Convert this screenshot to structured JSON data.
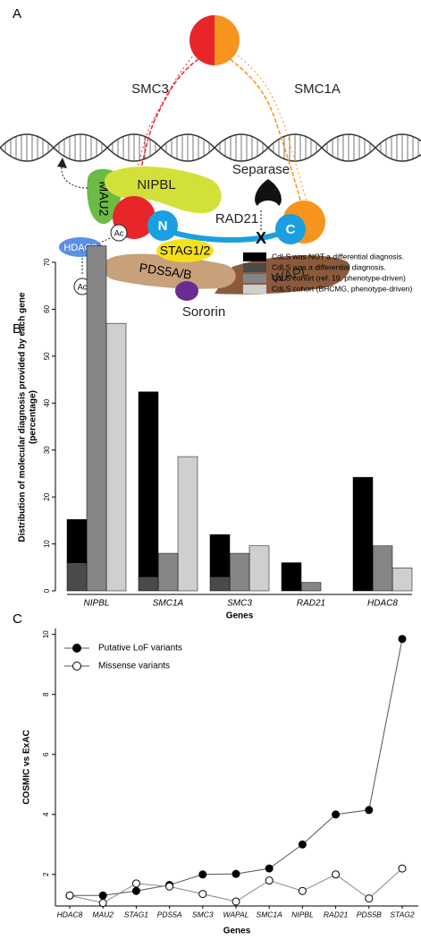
{
  "panel_labels": [
    "A",
    "B",
    "C"
  ],
  "diagram": {
    "smc3": "SMC3",
    "smc1a": "SMC1A",
    "separase": "Separase",
    "mau2": "MAU2",
    "nipbl": "NIPBL",
    "n_term": "N",
    "c_term": "C",
    "rad21": "RAD21",
    "cleave": "X",
    "ac1": "Ac",
    "ac2": "Ac",
    "hdac8": "HDAC8",
    "stag": "STAG1/2",
    "pds5": "PDS5A/B",
    "wapl": "WAPL",
    "sororin": "Sororin"
  },
  "chart_data": [
    {
      "type": "bar",
      "ylabel": [
        "Distribution of molecular diagnosis provided by each gene",
        "(percentage)"
      ],
      "xlabel": "Genes",
      "categories": [
        "NIPBL",
        "SMC1A",
        "SMC3",
        "RAD21",
        "HDAC8"
      ],
      "series": [
        {
          "name": "CdLS was NOT a differential diagnosis.",
          "color": "#000000",
          "stack": true,
          "values": [
            9.2,
            39.4,
            9,
            6,
            24.2
          ]
        },
        {
          "name": "CdLS was a differential diagnosis.",
          "color": "#4a4a4a",
          "stack": true,
          "values": [
            6,
            3,
            3,
            0,
            0
          ]
        },
        {
          "name": "CdLS cohort (ref. 19, phenotype-driven)",
          "color": "#858585",
          "values": [
            73.5,
            8,
            8,
            1.8,
            9.6
          ]
        },
        {
          "name": "CdLS cohort (BHCMG, phenotype-driven)",
          "color": "#cfcfcf",
          "values": [
            57,
            28.6,
            9.6,
            0,
            4.9
          ]
        }
      ],
      "ylim": [
        0,
        74
      ],
      "yticks": [
        0,
        10,
        20,
        30,
        40,
        50,
        60,
        70
      ],
      "legend": "top-right"
    },
    {
      "type": "line",
      "ylabel": "COSMIC vs ExAC",
      "xlabel": "Genes",
      "categories": [
        "HDAC8",
        "MAU2",
        "STAG1",
        "PDS5A",
        "SMC3",
        "WAPAL",
        "SMC1A",
        "NIPBL",
        "RAD21",
        "PDS5B",
        "STAG2"
      ],
      "series": [
        {
          "name": "Putative LoF variants",
          "color": "#000000",
          "marker": "filled",
          "values": [
            1.3,
            1.3,
            1.45,
            1.65,
            2.0,
            2.02,
            2.2,
            3.0,
            4.0,
            4.15,
            9.85
          ]
        },
        {
          "name": "Missense variants",
          "color": "#000000",
          "marker": "open",
          "values": [
            1.3,
            1.05,
            1.7,
            1.6,
            1.35,
            1.1,
            1.8,
            1.45,
            2.0,
            1.2,
            2.2
          ]
        }
      ],
      "ylim": [
        0.95,
        10.2
      ],
      "yticks": [
        2,
        4,
        6,
        8,
        10
      ],
      "legend": "top-left"
    }
  ]
}
